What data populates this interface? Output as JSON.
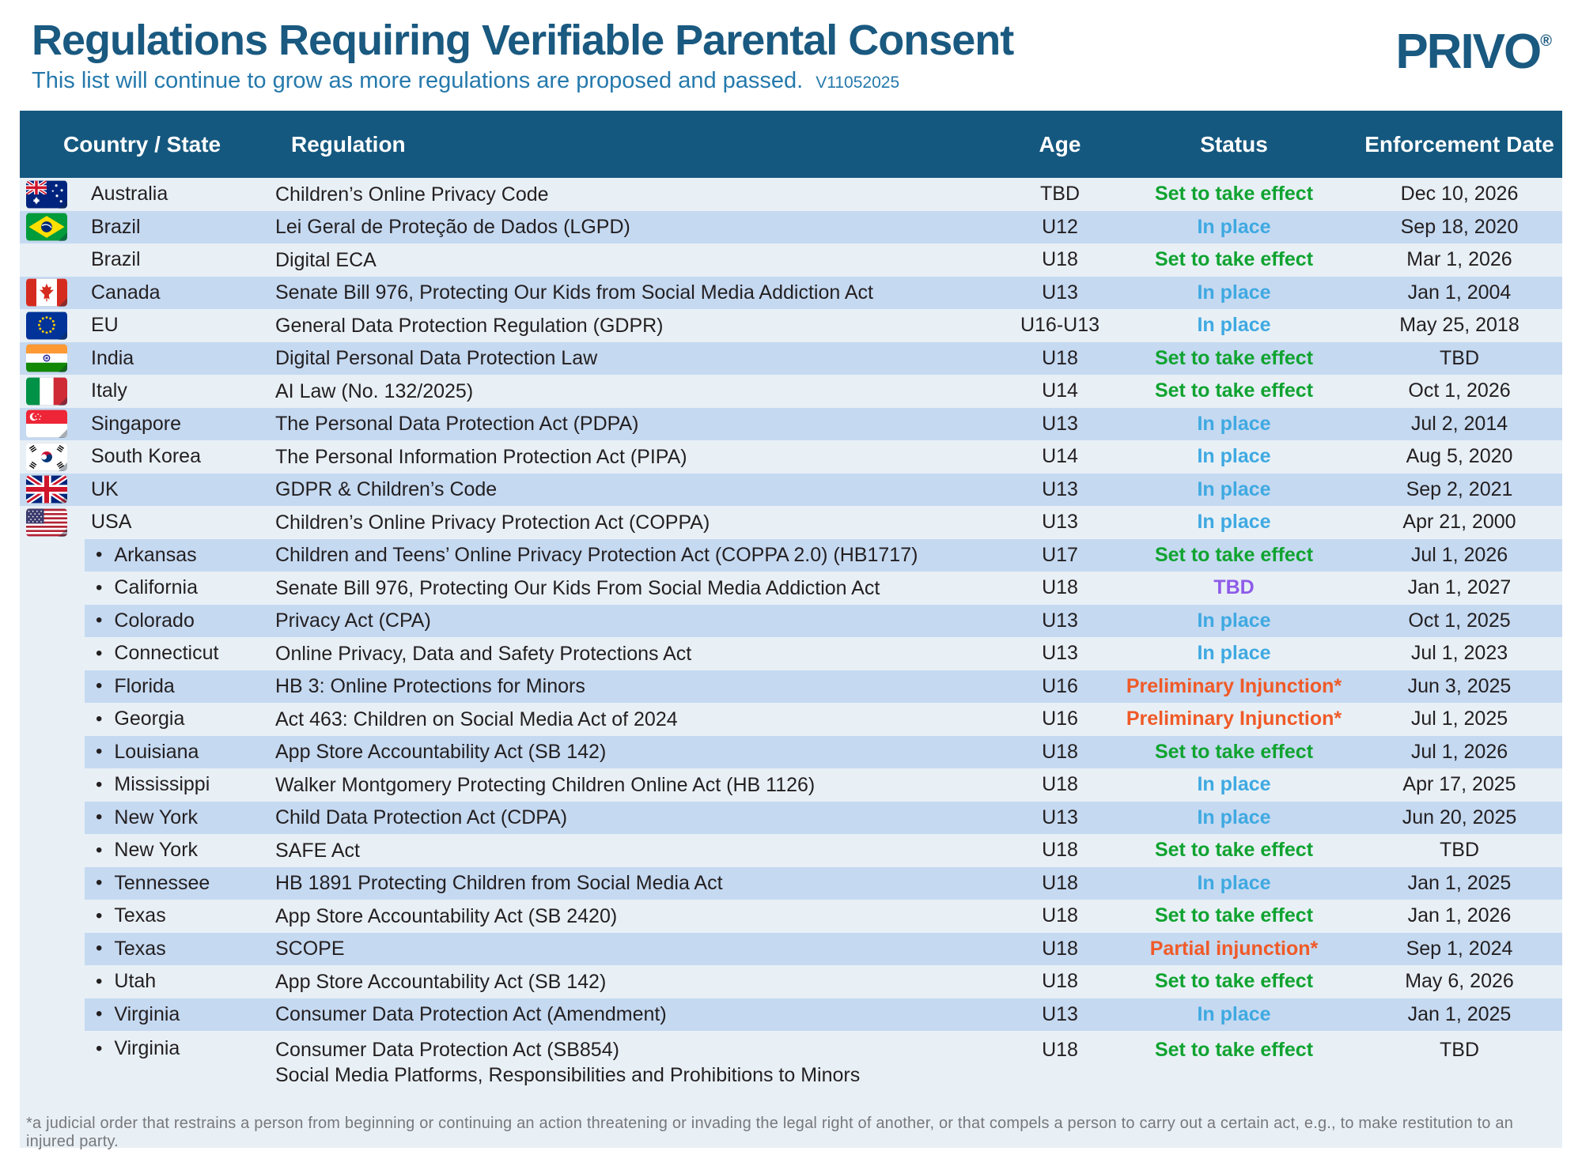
{
  "header": {
    "title": "Regulations Requiring Verifiable Parental Consent",
    "subtitle": "This list will continue to grow as more regulations are proposed and passed.",
    "version": "V11052025",
    "logo_text": "PRIVO",
    "logo_mark": "®"
  },
  "columns": {
    "country": "Country / State",
    "regulation": "Regulation",
    "age": "Age",
    "status": "Status",
    "date": "Enforcement Date"
  },
  "rows": [
    {
      "flag": "australia",
      "name": "Australia",
      "state": false,
      "regulation": "Children’s Online Privacy Code",
      "age": "TBD",
      "status": "Set to take effect",
      "status_style": "status_set_to_take_effect",
      "date": "Dec 10, 2026"
    },
    {
      "flag": "brazil",
      "name": "Brazil",
      "state": false,
      "regulation": "Lei Geral de Proteção de Dados (LGPD)",
      "age": "U12",
      "status": "In place",
      "status_style": "status_in_place",
      "date": "Sep 18, 2020"
    },
    {
      "flag": "",
      "name": "Brazil",
      "state": false,
      "regulation": "Digital ECA",
      "age": "U18",
      "status": "Set to take effect",
      "status_style": "status_set_to_take_effect",
      "date": "Mar 1, 2026"
    },
    {
      "flag": "canada",
      "name": "Canada",
      "state": false,
      "regulation": "Senate Bill 976, Protecting Our Kids from Social Media Addiction Act",
      "age": "U13",
      "status": "In place",
      "status_style": "status_in_place",
      "date": "Jan 1, 2004"
    },
    {
      "flag": "eu",
      "name": "EU",
      "state": false,
      "regulation": "General Data Protection Regulation (GDPR)",
      "age": "U16-U13",
      "status": "In place",
      "status_style": "status_in_place",
      "date": "May 25, 2018"
    },
    {
      "flag": "india",
      "name": "India",
      "state": false,
      "regulation": "Digital Personal Data Protection Law",
      "age": "U18",
      "status": "Set to take effect",
      "status_style": "status_set_to_take_effect",
      "date": "TBD"
    },
    {
      "flag": "italy",
      "name": "Italy",
      "state": false,
      "regulation": "AI Law (No. 132/2025)",
      "age": "U14",
      "status": "Set to take effect",
      "status_style": "status_set_to_take_effect",
      "date": "Oct 1, 2026"
    },
    {
      "flag": "singapore",
      "name": "Singapore",
      "state": false,
      "regulation": "The Personal Data Protection Act (PDPA)",
      "age": "U13",
      "status": "In place",
      "status_style": "status_in_place",
      "date": "Jul 2, 2014"
    },
    {
      "flag": "south-korea",
      "name": "South Korea",
      "state": false,
      "regulation": "The Personal Information Protection Act (PIPA)",
      "age": "U14",
      "status": "In place",
      "status_style": "status_in_place",
      "date": "Aug 5, 2020"
    },
    {
      "flag": "uk",
      "name": "UK",
      "state": false,
      "regulation": "GDPR & Children’s Code",
      "age": "U13",
      "status": "In place",
      "status_style": "status_in_place",
      "date": "Sep 2, 2021"
    },
    {
      "flag": "usa",
      "name": "USA",
      "state": false,
      "regulation": "Children’s Online Privacy Protection Act (COPPA)",
      "age": "U13",
      "status": "In place",
      "status_style": "status_in_place",
      "date": "Apr 21, 2000"
    },
    {
      "flag": "",
      "name": "Arkansas",
      "state": true,
      "regulation": "Children and Teens’ Online Privacy Protection Act (COPPA 2.0) (HB1717)",
      "age": "U17",
      "status": "Set to take effect",
      "status_style": "status_set_to_take_effect",
      "date": "Jul 1, 2026"
    },
    {
      "flag": "",
      "name": "California",
      "state": true,
      "regulation": "Senate Bill 976, Protecting Our Kids From Social Media Addiction Act",
      "age": "U18",
      "status": "TBD",
      "status_style": "status_tbd",
      "date": "Jan 1, 2027"
    },
    {
      "flag": "",
      "name": "Colorado",
      "state": true,
      "regulation": "Privacy Act (CPA)",
      "age": "U13",
      "status": "In place",
      "status_style": "status_in_place",
      "date": "Oct 1, 2025"
    },
    {
      "flag": "",
      "name": "Connecticut",
      "state": true,
      "regulation": "Online Privacy, Data and Safety Protections Act",
      "age": "U13",
      "status": "In place",
      "status_style": "status_in_place",
      "date": "Jul 1, 2023"
    },
    {
      "flag": "",
      "name": "Florida",
      "state": true,
      "regulation": "HB 3: Online Protections for Minors",
      "age": "U16",
      "status": "Preliminary Injunction*",
      "status_style": "status_injunction",
      "date": "Jun 3, 2025"
    },
    {
      "flag": "",
      "name": "Georgia",
      "state": true,
      "regulation": "Act 463: Children on Social Media Act of 2024",
      "age": "U16",
      "status": "Preliminary Injunction*",
      "status_style": "status_injunction",
      "date": "Jul 1, 2025"
    },
    {
      "flag": "",
      "name": "Louisiana",
      "state": true,
      "regulation": "App Store Accountability Act (SB 142)",
      "age": "U18",
      "status": "Set to take effect",
      "status_style": "status_set_to_take_effect",
      "date": "Jul 1, 2026"
    },
    {
      "flag": "",
      "name": "Mississippi",
      "state": true,
      "regulation": "Walker Montgomery Protecting Children Online Act (HB 1126)",
      "age": "U18",
      "status": "In place",
      "status_style": "status_in_place",
      "date": "Apr 17, 2025"
    },
    {
      "flag": "",
      "name": "New York",
      "state": true,
      "regulation": "Child Data Protection Act (CDPA)",
      "age": "U13",
      "status": "In place",
      "status_style": "status_in_place",
      "date": "Jun 20, 2025"
    },
    {
      "flag": "",
      "name": "New York",
      "state": true,
      "regulation": "SAFE Act",
      "age": "U18",
      "status": "Set to take effect",
      "status_style": "status_set_to_take_effect",
      "date": "TBD"
    },
    {
      "flag": "",
      "name": "Tennessee",
      "state": true,
      "regulation": "HB 1891 Protecting Children from Social Media Act",
      "age": "U18",
      "status": "In place",
      "status_style": "status_in_place",
      "date": "Jan 1, 2025"
    },
    {
      "flag": "",
      "name": "Texas",
      "state": true,
      "regulation": "App Store Accountability Act (SB 2420)",
      "age": "U18",
      "status": "Set to take effect",
      "status_style": "status_set_to_take_effect",
      "date": "Jan 1, 2026"
    },
    {
      "flag": "",
      "name": "Texas",
      "state": true,
      "regulation": "SCOPE",
      "age": "U18",
      "status": "Partial injunction*",
      "status_style": "status_injunction",
      "date": "Sep 1, 2024"
    },
    {
      "flag": "",
      "name": "Utah",
      "state": true,
      "regulation": "App Store Accountability Act (SB 142)",
      "age": "U18",
      "status": "Set to take effect",
      "status_style": "status_set_to_take_effect",
      "date": "May 6, 2026"
    },
    {
      "flag": "",
      "name": "Virginia",
      "state": true,
      "regulation": "Consumer Data Protection Act (Amendment)",
      "age": "U13",
      "status": "In place",
      "status_style": "status_in_place",
      "date": "Jan 1, 2025"
    },
    {
      "flag": "",
      "name": "Virginia",
      "state": true,
      "regulation": "Consumer Data Protection Act (SB854)",
      "regulation2": "Social Media Platforms, Responsibilities and Prohibitions to Minors",
      "age": "U18",
      "status": "Set to take effect",
      "status_style": "status_set_to_take_effect",
      "date": "TBD"
    }
  ],
  "footnote": "*a judicial order that restrains a person from beginning or continuing an action threatening or invading the legal right of another, or that compels a person to carry out a certain act, e.g., to make restitution to an injured party.",
  "colors": {
    "header_bar": "#15587F",
    "title": "#1A5980",
    "subtitle": "#2579AC",
    "row_light": "#E8F0F6",
    "row_blue": "#C5D9F1",
    "status_set_to_take_effect": "#10A330",
    "status_in_place": "#3FA9E1",
    "status_tbd": "#8E5BE9",
    "status_injunction": "#F05A28",
    "text_dark": "#231F20",
    "footnote_grey": "#77787B"
  }
}
